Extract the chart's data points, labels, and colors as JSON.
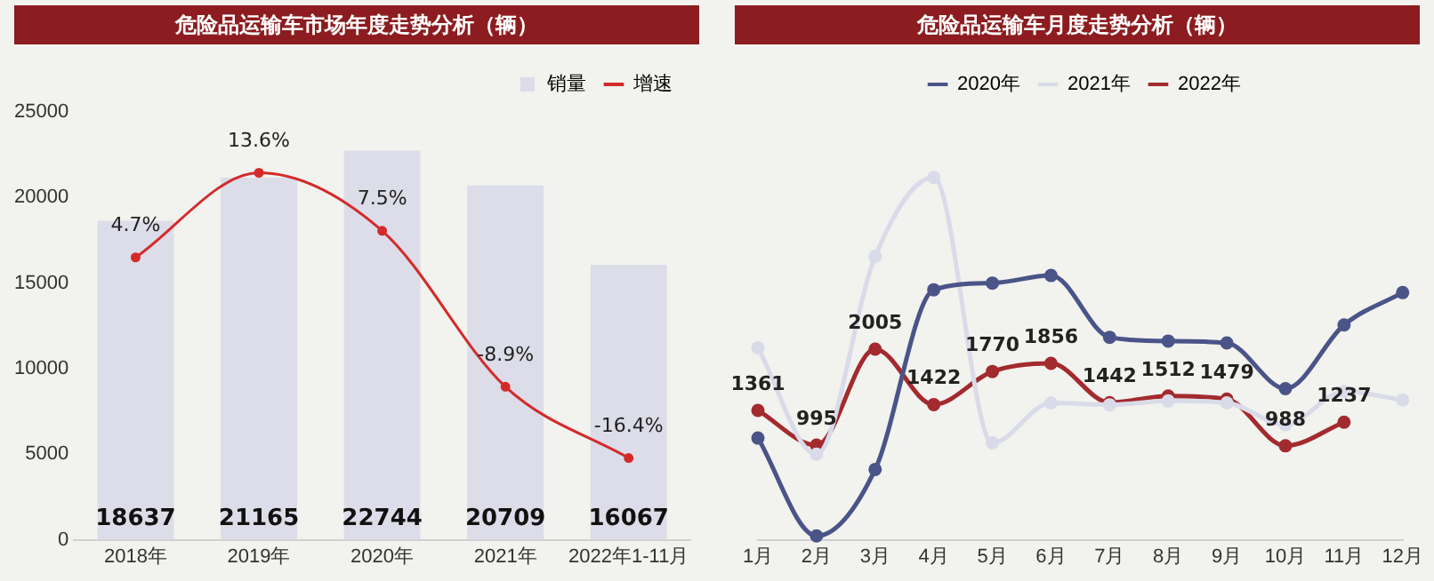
{
  "chart_data": [
    {
      "type": "bar",
      "title": "危险品运输车市场年度走势分析（辆）",
      "categories": [
        "2018年",
        "2019年",
        "2020年",
        "2021年",
        "2022年1-11月"
      ],
      "series": [
        {
          "name": "销量",
          "color": "#dcdde8",
          "values": [
            18637,
            21165,
            22744,
            20709,
            16067
          ],
          "value_labels": [
            "18637",
            "21165",
            "22744",
            "20709",
            "16067"
          ]
        },
        {
          "name": "增速",
          "type": "line",
          "axis": "y2",
          "color": "#d42a2a",
          "values": [
            4.7,
            13.6,
            7.5,
            -8.9,
            -16.4
          ],
          "value_labels": [
            "4.7%",
            "13.6%",
            "7.5%",
            "-8.9%",
            "-16.4%"
          ]
        }
      ],
      "ylim": [
        0,
        25000
      ],
      "yticks": [
        0,
        5000,
        10000,
        15000,
        20000,
        25000
      ],
      "tick_labels": "xy",
      "grid": false,
      "legend": "top right",
      "marker": "circle"
    },
    {
      "type": "line",
      "title": "危险品运输车月度走势分析（辆）",
      "categories": [
        "1月",
        "2月",
        "3月",
        "4月",
        "5月",
        "6月",
        "7月",
        "8月",
        "9月",
        "10月",
        "11月",
        "12月"
      ],
      "series": [
        {
          "name": "2020年",
          "color": "#4a5488",
          "values": [
            1070,
            40,
            740,
            2630,
            2700,
            2780,
            2130,
            2090,
            2070,
            1590,
            2260,
            2600
          ]
        },
        {
          "name": "2021年",
          "color": "#d9dbe9",
          "values": [
            2020,
            900,
            2980,
            3810,
            1020,
            1440,
            1420,
            1460,
            1440,
            1210,
            1560,
            1470
          ]
        },
        {
          "name": "2022年",
          "color": "#a32a2e",
          "values": [
            1361,
            995,
            2005,
            1422,
            1770,
            1856,
            1442,
            1512,
            1479,
            988,
            1237,
            null
          ],
          "value_labels": [
            "1361",
            "995",
            "2005",
            "1422",
            "1770",
            "1856",
            "1442",
            "1512",
            "1479",
            "988",
            "1237",
            null
          ]
        }
      ],
      "tick_labels": "x",
      "grid": false,
      "legend": "top",
      "marker": "circle"
    }
  ]
}
